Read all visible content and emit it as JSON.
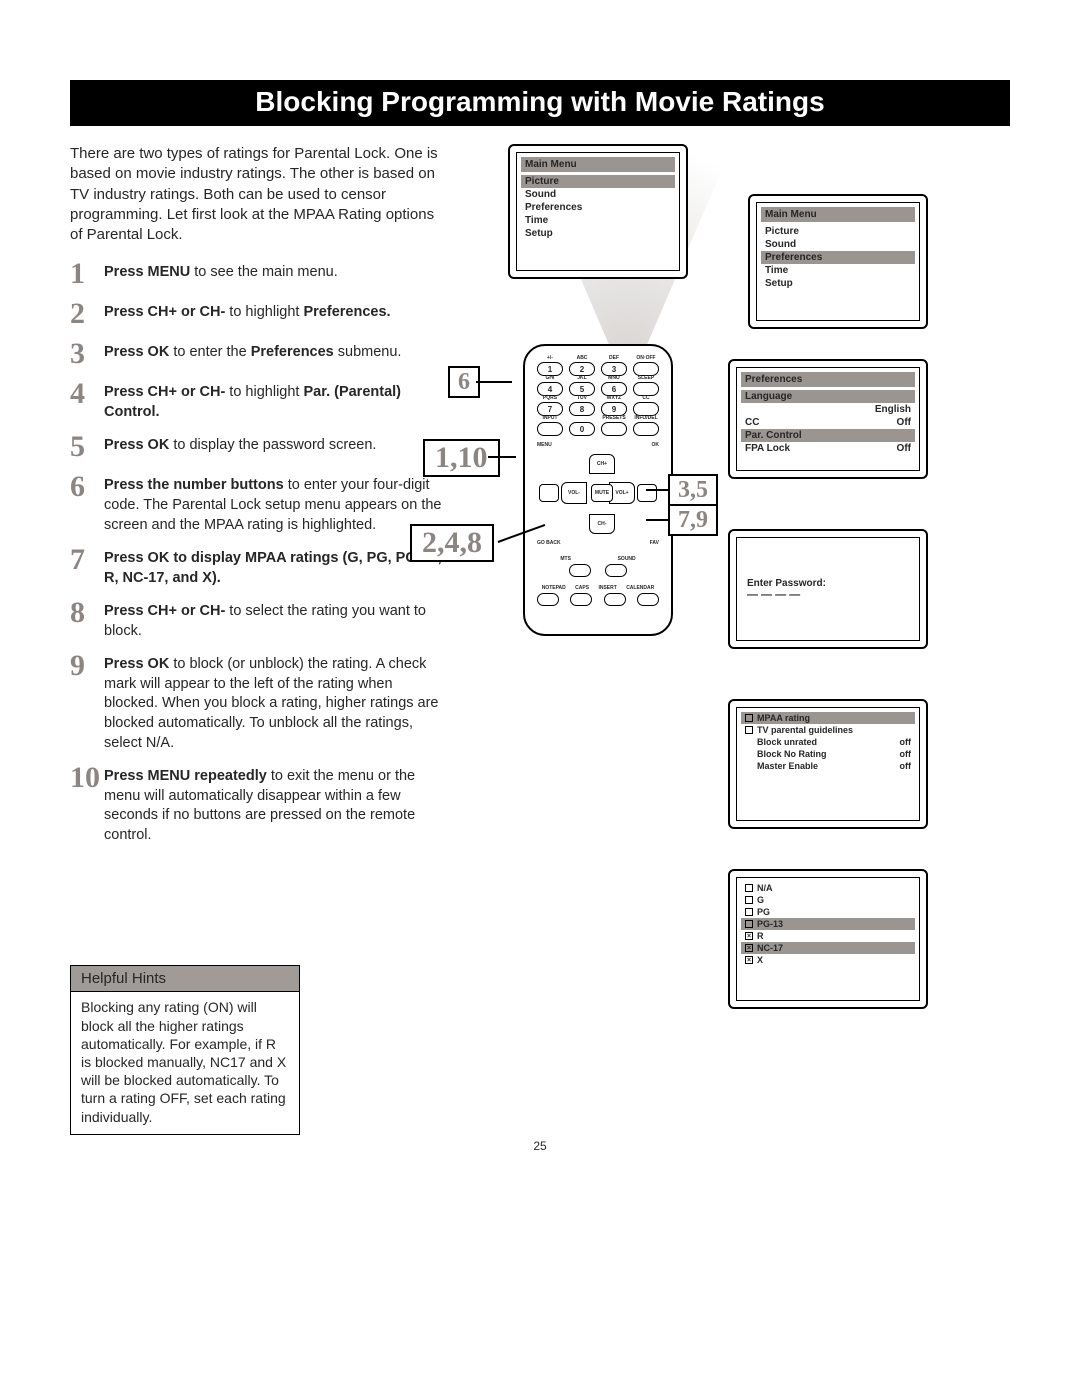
{
  "title": "Blocking Programming with Movie Ratings",
  "intro": "There are two types of ratings for Parental Lock. One is based on movie industry ratings. The other is based on TV industry ratings. Both can be used to censor programming. Let first look at the MPAA Rating options of Parental Lock.",
  "steps": [
    {
      "n": "1",
      "html": "<b>Press MENU</b> to see the main menu."
    },
    {
      "n": "2",
      "html": "<b>Press CH+ or CH-</b> to highlight <b>Preferences.</b>"
    },
    {
      "n": "3",
      "html": "<b>Press OK</b> to enter the <b>Preferences</b> submenu."
    },
    {
      "n": "4",
      "html": "<b>Press CH+ or CH-</b> to highlight <b>Par. (Parental) Control.</b>"
    },
    {
      "n": "5",
      "html": "<b>Press OK</b> to display the password screen."
    },
    {
      "n": "6",
      "html": "<b>Press the number buttons</b> to enter your four-digit code. The Parental Lock setup menu appears on the screen and the MPAA rating is highlighted."
    },
    {
      "n": "7",
      "html": "<b>Press OK to display MPAA ratings (G, PG, PG-13, R, NC-17, and X).</b>"
    },
    {
      "n": "8",
      "html": "<b>Press CH+ or CH-</b> to select the rating you want to block."
    },
    {
      "n": "9",
      "html": "<b>Press OK</b> to block (or unblock) the rating. A check mark will appear to the left of the rating when blocked. When you block a rating, higher ratings are blocked automatically. To unblock all the ratings, select N/A."
    },
    {
      "n": "10",
      "html": "<b>Press MENU repeatedly</b> to exit the menu or the menu will automatically disappear within a few seconds if no buttons are pressed on the remote control."
    }
  ],
  "hints": {
    "title": "Helpful Hints",
    "body": "Blocking any rating (ON) will block all the higher ratings automatically. For example, if R is blocked manually, NC17 and X will be blocked automatically. To turn a rating OFF, set each rating individually."
  },
  "screens": {
    "main1": {
      "title": "Main Menu",
      "items": [
        "Picture",
        "Sound",
        "Preferences",
        "Time",
        "Setup"
      ],
      "hl": 0
    },
    "main2": {
      "title": "Main Menu",
      "items": [
        "Picture",
        "Sound",
        "Preferences",
        "Time",
        "Setup"
      ],
      "hl": 2
    },
    "prefs": {
      "title": "Preferences",
      "rows": [
        {
          "l": "Language",
          "r": "",
          "hl": true
        },
        {
          "l": "",
          "r": "English",
          "hl": false
        },
        {
          "l": "CC",
          "r": "Off",
          "hl": false
        },
        {
          "l": "Par. Control",
          "r": "",
          "hl": true
        },
        {
          "l": "FPA Lock",
          "r": "Off",
          "hl": false
        }
      ]
    },
    "password": {
      "label": "Enter Password:",
      "dashes": "— — — —"
    },
    "mpaa": {
      "rows": [
        {
          "chk": "□",
          "l": "MPAA rating",
          "hl": true
        },
        {
          "chk": "□",
          "l": "TV parental guidelines",
          "hl": false
        },
        {
          "chk": "",
          "l": "Block unrated",
          "r": "off",
          "hl": false
        },
        {
          "chk": "",
          "l": "Block No Rating",
          "r": "off",
          "hl": false
        },
        {
          "chk": "",
          "l": "Master Enable",
          "r": "off",
          "hl": false
        }
      ]
    },
    "ratings": [
      {
        "chk": "□",
        "l": "N/A",
        "hl": false
      },
      {
        "chk": "□",
        "l": "G",
        "hl": false
      },
      {
        "chk": "□",
        "l": "PG",
        "hl": false
      },
      {
        "chk": "□",
        "l": "PG-13",
        "hl": true
      },
      {
        "chk": "☒",
        "l": "R",
        "hl": false
      },
      {
        "chk": "☒",
        "l": "NC-17",
        "hl": true
      },
      {
        "chk": "☒",
        "l": "X",
        "hl": false
      }
    ]
  },
  "callouts": {
    "c6": "6",
    "c110": "1,10",
    "c248": "2,4,8",
    "c35": "3,5",
    "c79": "7,9"
  },
  "remote_rows": [
    [
      {
        "t": "+/-",
        "n": "1"
      },
      {
        "t": "ABC",
        "n": "2"
      },
      {
        "t": "DEF",
        "n": "3"
      },
      {
        "t": "ON·OFF",
        "n": ""
      }
    ],
    [
      {
        "t": "GHI",
        "n": "4"
      },
      {
        "t": "JKL",
        "n": "5"
      },
      {
        "t": "MNO",
        "n": "6"
      },
      {
        "t": "SLEEP",
        "n": ""
      }
    ],
    [
      {
        "t": "PQRS",
        "n": "7"
      },
      {
        "t": "TUV",
        "n": "8"
      },
      {
        "t": "WXYZ",
        "n": "9"
      },
      {
        "t": "CC",
        "n": ""
      }
    ],
    [
      {
        "t": "INPUT",
        "n": ""
      },
      {
        "t": "",
        "n": "0"
      },
      {
        "t": "PRESETS",
        "n": ""
      },
      {
        "t": "INFO/DEL",
        "n": ""
      }
    ]
  ],
  "remote_nav": {
    "menu": "MENU",
    "ok": "OK",
    "chp": "CH+",
    "chm": "CH-",
    "volm": "VOL-",
    "volp": "VOL+",
    "mute": "MUTE",
    "gb": "GO BACK",
    "fav": "FAV"
  },
  "remote_bottom_lbls": [
    "MTS",
    "SOUND"
  ],
  "remote_bottom2": [
    "NOTEPAD",
    "CAPS",
    "INSERT",
    "CALENDAR"
  ],
  "pageNum": "25",
  "colors": {
    "accent": "#9b9591",
    "num": "#8c8683"
  }
}
